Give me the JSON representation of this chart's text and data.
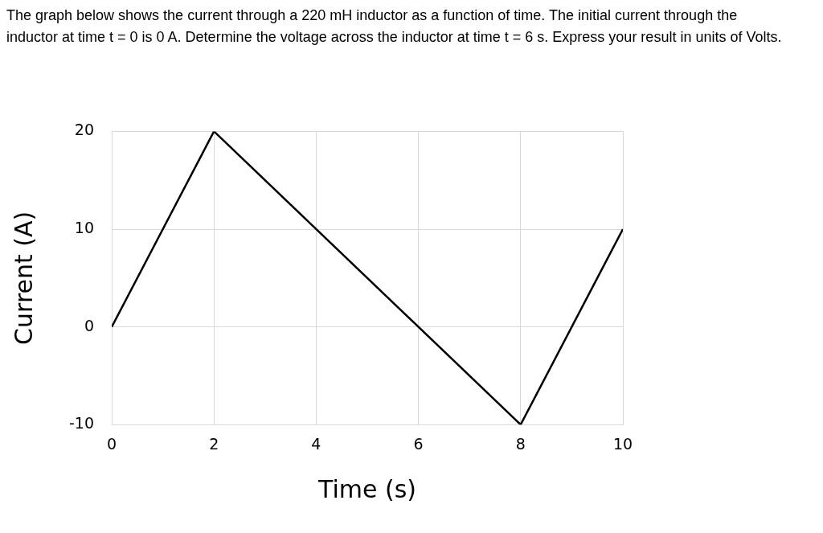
{
  "chart_data": {
    "type": "line",
    "title": "The graph below shows the current through a 220 mH inductor as a function of time. The initial current through the inductor at time t = 0 is 0 A. Determine the voltage across the inductor at time t = 6 s. Express your result in units of Volts.",
    "xlabel": "Time (s)",
    "ylabel": "Current (A)",
    "x": [
      0,
      2,
      8,
      10
    ],
    "series": [
      {
        "color": "#000000",
        "values": [
          0,
          20,
          -10,
          10
        ]
      }
    ],
    "xlim": [
      0,
      10
    ],
    "xticks": [
      0,
      2,
      4,
      6,
      8,
      10
    ],
    "ylim": [
      -10,
      20
    ],
    "yticks": [
      -10,
      0,
      10,
      20
    ],
    "grid": true,
    "legend": false,
    "marker": "none",
    "line_style": "solid"
  }
}
